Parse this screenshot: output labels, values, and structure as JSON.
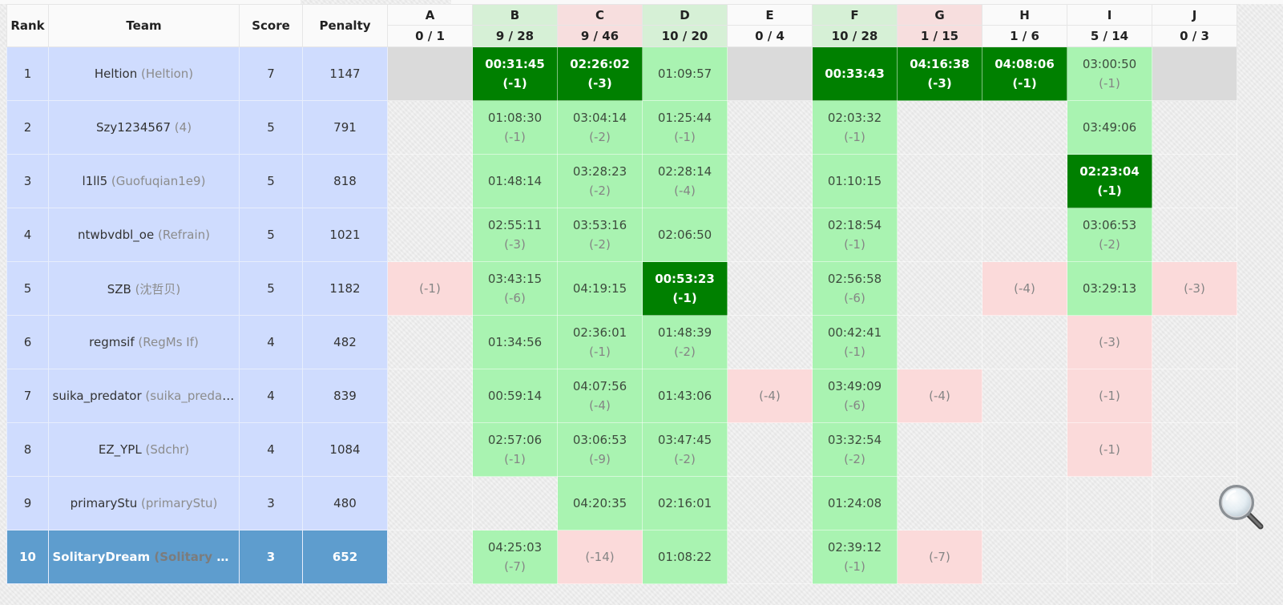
{
  "header": {
    "rank": "Rank",
    "team": "Team",
    "score": "Score",
    "penalty": "Penalty"
  },
  "problems": [
    {
      "label": "A",
      "count": "0 / 1",
      "status": "none"
    },
    {
      "label": "B",
      "count": "9 / 28",
      "status": "green"
    },
    {
      "label": "C",
      "count": "9 / 46",
      "status": "red"
    },
    {
      "label": "D",
      "count": "10 / 20",
      "status": "green"
    },
    {
      "label": "E",
      "count": "0 / 4",
      "status": "none"
    },
    {
      "label": "F",
      "count": "10 / 28",
      "status": "green"
    },
    {
      "label": "G",
      "count": "1 / 15",
      "status": "red"
    },
    {
      "label": "H",
      "count": "1 / 6",
      "status": "none"
    },
    {
      "label": "I",
      "count": "5 / 14",
      "status": "none"
    },
    {
      "label": "J",
      "count": "0 / 3",
      "status": "none"
    }
  ],
  "rows": [
    {
      "rank": "1",
      "team": "Heltion",
      "sub": "(Heltion)",
      "score": "7",
      "penalty": "1147",
      "gray": true,
      "cells": [
        {
          "t": "none"
        },
        {
          "t": "fb",
          "time": "00:31:45",
          "tries": "(-1)"
        },
        {
          "t": "fb",
          "time": "02:26:02",
          "tries": "(-3)"
        },
        {
          "t": "ac",
          "time": "01:09:57",
          "tries": ""
        },
        {
          "t": "none"
        },
        {
          "t": "fb",
          "time": "00:33:43",
          "tries": ""
        },
        {
          "t": "fb",
          "time": "04:16:38",
          "tries": "(-3)"
        },
        {
          "t": "fb",
          "time": "04:08:06",
          "tries": "(-1)"
        },
        {
          "t": "ac",
          "time": "03:00:50",
          "tries": "(-1)"
        },
        {
          "t": "none"
        }
      ]
    },
    {
      "rank": "2",
      "team": "Szy1234567",
      "sub": "(4)",
      "score": "5",
      "penalty": "791",
      "cells": [
        {
          "t": "none"
        },
        {
          "t": "ac",
          "time": "01:08:30",
          "tries": "(-1)"
        },
        {
          "t": "ac",
          "time": "03:04:14",
          "tries": "(-2)"
        },
        {
          "t": "ac",
          "time": "01:25:44",
          "tries": "(-1)"
        },
        {
          "t": "none"
        },
        {
          "t": "ac",
          "time": "02:03:32",
          "tries": "(-1)"
        },
        {
          "t": "none"
        },
        {
          "t": "none"
        },
        {
          "t": "ac",
          "time": "03:49:06",
          "tries": ""
        },
        {
          "t": "none"
        }
      ]
    },
    {
      "rank": "3",
      "team": "l1ll5",
      "sub": "(Guofuqian1e9)",
      "score": "5",
      "penalty": "818",
      "cells": [
        {
          "t": "none"
        },
        {
          "t": "ac",
          "time": "01:48:14",
          "tries": ""
        },
        {
          "t": "ac",
          "time": "03:28:23",
          "tries": "(-2)"
        },
        {
          "t": "ac",
          "time": "02:28:14",
          "tries": "(-4)"
        },
        {
          "t": "none"
        },
        {
          "t": "ac",
          "time": "01:10:15",
          "tries": ""
        },
        {
          "t": "none"
        },
        {
          "t": "none"
        },
        {
          "t": "fb",
          "time": "02:23:04",
          "tries": "(-1)"
        },
        {
          "t": "none"
        }
      ]
    },
    {
      "rank": "4",
      "team": "ntwbvdbl_oe",
      "sub": "(Refrain)",
      "score": "5",
      "penalty": "1021",
      "cells": [
        {
          "t": "none"
        },
        {
          "t": "ac",
          "time": "02:55:11",
          "tries": "(-3)"
        },
        {
          "t": "ac",
          "time": "03:53:16",
          "tries": "(-2)"
        },
        {
          "t": "ac",
          "time": "02:06:50",
          "tries": ""
        },
        {
          "t": "none"
        },
        {
          "t": "ac",
          "time": "02:18:54",
          "tries": "(-1)"
        },
        {
          "t": "none"
        },
        {
          "t": "none"
        },
        {
          "t": "ac",
          "time": "03:06:53",
          "tries": "(-2)"
        },
        {
          "t": "none"
        }
      ]
    },
    {
      "rank": "5",
      "team": "SZB",
      "sub": "(沈哲贝)",
      "score": "5",
      "penalty": "1182",
      "cells": [
        {
          "t": "wa",
          "tries": "(-1)"
        },
        {
          "t": "ac",
          "time": "03:43:15",
          "tries": "(-6)"
        },
        {
          "t": "ac",
          "time": "04:19:15",
          "tries": ""
        },
        {
          "t": "fb",
          "time": "00:53:23",
          "tries": "(-1)"
        },
        {
          "t": "none"
        },
        {
          "t": "ac",
          "time": "02:56:58",
          "tries": "(-6)"
        },
        {
          "t": "none"
        },
        {
          "t": "wa",
          "tries": "(-4)"
        },
        {
          "t": "ac",
          "time": "03:29:13",
          "tries": ""
        },
        {
          "t": "wa",
          "tries": "(-3)"
        }
      ]
    },
    {
      "rank": "6",
      "team": "regmsif",
      "sub": "(RegMs If)",
      "score": "4",
      "penalty": "482",
      "cells": [
        {
          "t": "none"
        },
        {
          "t": "ac",
          "time": "01:34:56",
          "tries": ""
        },
        {
          "t": "ac",
          "time": "02:36:01",
          "tries": "(-1)"
        },
        {
          "t": "ac",
          "time": "01:48:39",
          "tries": "(-2)"
        },
        {
          "t": "none"
        },
        {
          "t": "ac",
          "time": "00:42:41",
          "tries": "(-1)"
        },
        {
          "t": "none"
        },
        {
          "t": "none"
        },
        {
          "t": "wa",
          "tries": "(-3)"
        },
        {
          "t": "none"
        }
      ]
    },
    {
      "rank": "7",
      "team": "suika_predator",
      "sub": "(suika_predat...",
      "score": "4",
      "penalty": "839",
      "cells": [
        {
          "t": "none"
        },
        {
          "t": "ac",
          "time": "00:59:14",
          "tries": ""
        },
        {
          "t": "ac",
          "time": "04:07:56",
          "tries": "(-4)"
        },
        {
          "t": "ac",
          "time": "01:43:06",
          "tries": ""
        },
        {
          "t": "wa",
          "tries": "(-4)"
        },
        {
          "t": "ac",
          "time": "03:49:09",
          "tries": "(-6)"
        },
        {
          "t": "wa",
          "tries": "(-4)"
        },
        {
          "t": "none"
        },
        {
          "t": "wa",
          "tries": "(-1)"
        },
        {
          "t": "none"
        }
      ]
    },
    {
      "rank": "8",
      "team": "EZ_YPL",
      "sub": "(Sdchr)",
      "score": "4",
      "penalty": "1084",
      "cells": [
        {
          "t": "none"
        },
        {
          "t": "ac",
          "time": "02:57:06",
          "tries": "(-1)"
        },
        {
          "t": "ac",
          "time": "03:06:53",
          "tries": "(-9)"
        },
        {
          "t": "ac",
          "time": "03:47:45",
          "tries": "(-2)"
        },
        {
          "t": "none"
        },
        {
          "t": "ac",
          "time": "03:32:54",
          "tries": "(-2)"
        },
        {
          "t": "none"
        },
        {
          "t": "none"
        },
        {
          "t": "wa",
          "tries": "(-1)"
        },
        {
          "t": "none"
        }
      ]
    },
    {
      "rank": "9",
      "team": "primaryStu",
      "sub": "(primaryStu)",
      "score": "3",
      "penalty": "480",
      "cells": [
        {
          "t": "none"
        },
        {
          "t": "none"
        },
        {
          "t": "ac",
          "time": "04:20:35",
          "tries": ""
        },
        {
          "t": "ac",
          "time": "02:16:01",
          "tries": ""
        },
        {
          "t": "none"
        },
        {
          "t": "ac",
          "time": "01:24:08",
          "tries": ""
        },
        {
          "t": "none"
        },
        {
          "t": "none"
        },
        {
          "t": "none"
        },
        {
          "t": "none"
        }
      ]
    },
    {
      "rank": "10",
      "team": "SolitaryDream",
      "sub": "(Solitary Dr...",
      "score": "3",
      "penalty": "652",
      "me": true,
      "cells": [
        {
          "t": "none"
        },
        {
          "t": "ac",
          "time": "04:25:03",
          "tries": "(-7)"
        },
        {
          "t": "wa",
          "tries": "(-14)"
        },
        {
          "t": "ac",
          "time": "01:08:22",
          "tries": ""
        },
        {
          "t": "none"
        },
        {
          "t": "ac",
          "time": "02:39:12",
          "tries": "(-1)"
        },
        {
          "t": "wa",
          "tries": "(-7)"
        },
        {
          "t": "none"
        },
        {
          "t": "none"
        },
        {
          "t": "none"
        }
      ]
    }
  ],
  "overlay": {
    "icon": "magnifier-icon"
  }
}
